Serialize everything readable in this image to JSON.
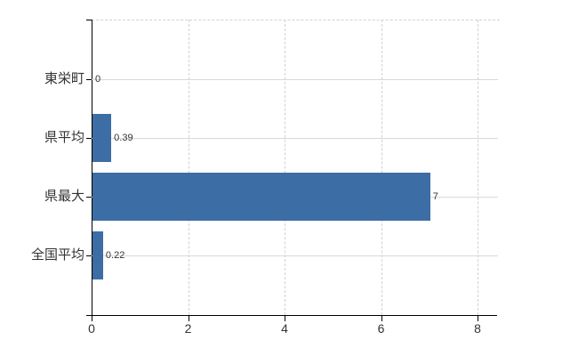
{
  "chart_data": {
    "type": "bar",
    "orientation": "horizontal",
    "title": "",
    "xlabel": "",
    "ylabel": "",
    "categories": [
      "東栄町",
      "県平均",
      "県最大",
      "全国平均"
    ],
    "values": [
      0,
      0.39,
      7,
      0.22
    ],
    "value_labels": [
      "0",
      "0.39",
      "7",
      "0.22"
    ],
    "x_ticks": [
      0,
      2,
      4,
      6,
      8
    ],
    "x_tick_labels": [
      "0",
      "2",
      "4",
      "6",
      "8"
    ],
    "xlim": [
      0,
      8.4
    ],
    "grid": true,
    "legend": false,
    "gridline_style": {
      "horizontal": "solid",
      "vertical": "dashed",
      "top_boundary": "dashed"
    },
    "colors": {
      "bar": "#3c6ea5",
      "axis": "#000000",
      "text": "#333333",
      "h_grid": "#d4dcd4",
      "v_grid": "#d7ced7",
      "background": "#ffffff"
    }
  }
}
